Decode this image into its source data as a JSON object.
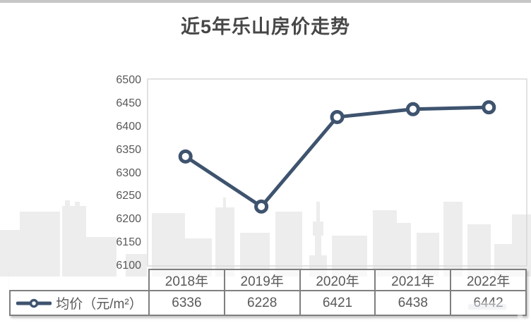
{
  "chart_data": {
    "type": "line",
    "title": "近5年乐山房价走势",
    "categories": [
      "2018年",
      "2019年",
      "2020年",
      "2021年",
      "2022年"
    ],
    "series": [
      {
        "name": "均价（元/m²）",
        "values": [
          6336,
          6228,
          6421,
          6438,
          6442
        ]
      }
    ],
    "ylim": [
      6100,
      6500
    ],
    "yticks": [
      6500,
      6450,
      6400,
      6350,
      6300,
      6250,
      6200,
      6150,
      6100
    ],
    "grid": false,
    "legend_position": "data-table-left",
    "data_table_shown": true,
    "line_color": "#3e536e",
    "marker_style": "open-circle",
    "marker_fill": "#ffffff",
    "plot_border_color": "#d9d9d9"
  },
  "colors": {
    "title_text": "#474747",
    "axis_text": "#595959",
    "table_text": "#595959",
    "table_border": "#7f7f7f",
    "background": "#ffffff",
    "skyline": "#ededed",
    "top_edge": "#c6c6c6"
  }
}
